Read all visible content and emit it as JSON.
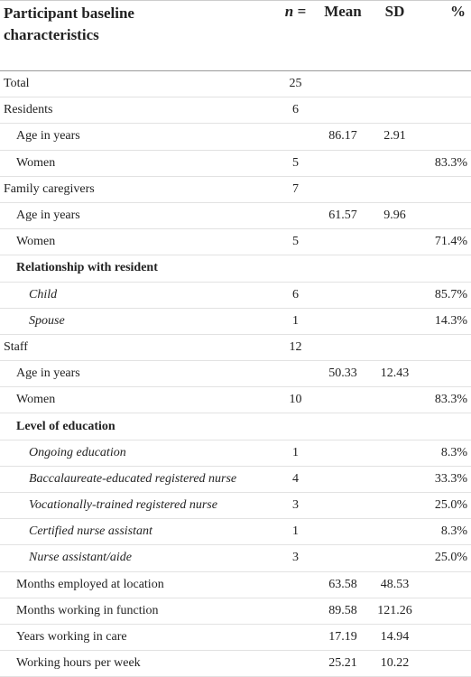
{
  "header": {
    "title": "Participant baseline characteristics",
    "n": "n =",
    "mean": "Mean",
    "sd": "SD",
    "pct": "%"
  },
  "table": {
    "rows": [
      [
        "Total",
        25,
        null,
        null,
        null
      ],
      [
        "Residents",
        6,
        null,
        null,
        null
      ],
      [
        "Age in years",
        null,
        86.17,
        2.91,
        null
      ],
      [
        "Women",
        5,
        null,
        null,
        "83.3%"
      ],
      [
        "Family caregivers",
        7,
        null,
        null,
        null
      ],
      [
        "Age in years",
        null,
        61.57,
        9.96,
        null
      ],
      [
        "Women",
        5,
        null,
        null,
        "71.4%"
      ],
      [
        "Relationship with resident",
        null,
        null,
        null,
        null
      ],
      [
        "Child",
        6,
        null,
        null,
        "85.7%"
      ],
      [
        "Spouse",
        1,
        null,
        null,
        "14.3%"
      ],
      [
        "Staff",
        12,
        null,
        null,
        null
      ],
      [
        "Age in years",
        null,
        50.33,
        12.43,
        null
      ],
      [
        "Women",
        10,
        null,
        null,
        "83.3%"
      ],
      [
        "Level of education",
        null,
        null,
        null,
        null
      ],
      [
        "Ongoing education",
        1,
        null,
        null,
        "8.3%"
      ],
      [
        "Baccalaureate-educated registered nurse",
        4,
        null,
        null,
        "33.3%"
      ],
      [
        "Vocationally-trained registered nurse",
        3,
        null,
        null,
        "25.0%"
      ],
      [
        "Certified nurse assistant",
        1,
        null,
        null,
        "8.3%"
      ],
      [
        "Nurse assistant/aide",
        3,
        null,
        null,
        "25.0%"
      ],
      [
        "Months employed at location",
        null,
        63.58,
        48.53,
        null
      ],
      [
        "Months working in function",
        null,
        89.58,
        121.26,
        null
      ],
      [
        "Years working in care",
        null,
        17.19,
        14.94,
        null
      ],
      [
        "Working hours per week",
        null,
        25.21,
        10.22,
        null
      ]
    ]
  }
}
